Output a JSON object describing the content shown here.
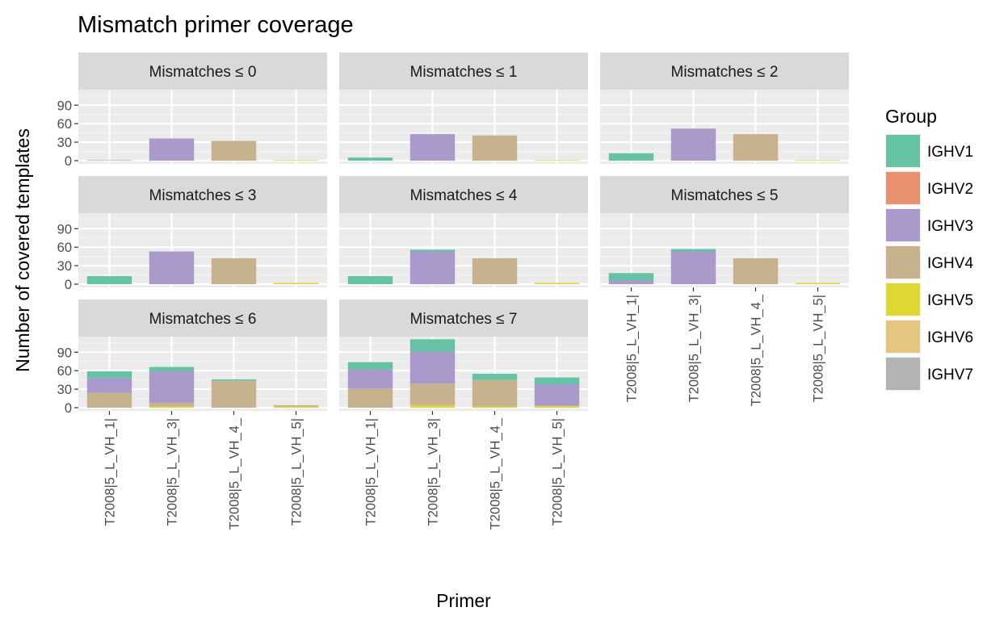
{
  "chart_data": {
    "type": "bar",
    "stacked": true,
    "faceted": true,
    "title": "Mismatch primer coverage",
    "xlabel": "Primer",
    "ylabel": "Number of covered templates",
    "ylim": [
      0,
      110
    ],
    "yticks": [
      0,
      30,
      60,
      90
    ],
    "grid": true,
    "legend": {
      "title": "Group",
      "position": "right",
      "entries": [
        "IGHV1",
        "IGHV2",
        "IGHV3",
        "IGHV4",
        "IGHV5",
        "IGHV6",
        "IGHV7"
      ]
    },
    "colors": {
      "IGHV1": "#66c2a5",
      "IGHV2": "#e8916f",
      "IGHV3": "#a99acb",
      "IGHV4": "#c6b28d",
      "IGHV5": "#dfd734",
      "IGHV6": "#e6c57f",
      "IGHV7": "#b3b3b3"
    },
    "categories": [
      "T2008|5_L_VH_1|",
      "T2008|5_L_VH_3|",
      "T2008|5_L_VH_4_",
      "T2008|5_L_VH_5|"
    ],
    "facets": [
      {
        "label": "Mismatches ≤ 0",
        "bars": [
          {
            "category": "T2008|5_L_VH_1|",
            "segments": [
              {
                "group": "IGHV7",
                "value": 1
              }
            ]
          },
          {
            "category": "T2008|5_L_VH_3|",
            "segments": [
              {
                "group": "IGHV3",
                "value": 36
              }
            ]
          },
          {
            "category": "T2008|5_L_VH_4_",
            "segments": [
              {
                "group": "IGHV4",
                "value": 32
              }
            ]
          },
          {
            "category": "T2008|5_L_VH_5|",
            "segments": [
              {
                "group": "IGHV5",
                "value": 1
              }
            ]
          }
        ]
      },
      {
        "label": "Mismatches ≤ 1",
        "bars": [
          {
            "category": "T2008|5_L_VH_1|",
            "segments": [
              {
                "group": "IGHV1",
                "value": 5
              }
            ]
          },
          {
            "category": "T2008|5_L_VH_3|",
            "segments": [
              {
                "group": "IGHV3",
                "value": 43
              }
            ]
          },
          {
            "category": "T2008|5_L_VH_4_",
            "segments": [
              {
                "group": "IGHV4",
                "value": 41
              }
            ]
          },
          {
            "category": "T2008|5_L_VH_5|",
            "segments": [
              {
                "group": "IGHV5",
                "value": 1
              }
            ]
          }
        ]
      },
      {
        "label": "Mismatches ≤ 2",
        "bars": [
          {
            "category": "T2008|5_L_VH_1|",
            "segments": [
              {
                "group": "IGHV1",
                "value": 12
              }
            ]
          },
          {
            "category": "T2008|5_L_VH_3|",
            "segments": [
              {
                "group": "IGHV3",
                "value": 52
              }
            ]
          },
          {
            "category": "T2008|5_L_VH_4_",
            "segments": [
              {
                "group": "IGHV4",
                "value": 43
              }
            ]
          },
          {
            "category": "T2008|5_L_VH_5|",
            "segments": [
              {
                "group": "IGHV5",
                "value": 1
              }
            ]
          }
        ]
      },
      {
        "label": "Mismatches ≤ 3",
        "bars": [
          {
            "category": "T2008|5_L_VH_1|",
            "segments": [
              {
                "group": "IGHV1",
                "value": 13
              }
            ]
          },
          {
            "category": "T2008|5_L_VH_3|",
            "segments": [
              {
                "group": "IGHV3",
                "value": 53
              }
            ]
          },
          {
            "category": "T2008|5_L_VH_4_",
            "segments": [
              {
                "group": "IGHV4",
                "value": 42
              }
            ]
          },
          {
            "category": "T2008|5_L_VH_5|",
            "segments": [
              {
                "group": "IGHV5",
                "value": 2
              }
            ]
          }
        ]
      },
      {
        "label": "Mismatches ≤ 4",
        "bars": [
          {
            "category": "T2008|5_L_VH_1|",
            "segments": [
              {
                "group": "IGHV1",
                "value": 13
              }
            ]
          },
          {
            "category": "T2008|5_L_VH_3|",
            "segments": [
              {
                "group": "IGHV3",
                "value": 53
              },
              {
                "group": "IGHV1",
                "value": 3
              }
            ]
          },
          {
            "category": "T2008|5_L_VH_4_",
            "segments": [
              {
                "group": "IGHV4",
                "value": 42
              }
            ]
          },
          {
            "category": "T2008|5_L_VH_5|",
            "segments": [
              {
                "group": "IGHV5",
                "value": 2
              }
            ]
          }
        ]
      },
      {
        "label": "Mismatches ≤ 5",
        "bars": [
          {
            "category": "T2008|5_L_VH_1|",
            "segments": [
              {
                "group": "IGHV3",
                "value": 6
              },
              {
                "group": "IGHV1",
                "value": 12
              }
            ]
          },
          {
            "category": "T2008|5_L_VH_3|",
            "segments": [
              {
                "group": "IGHV3",
                "value": 53
              },
              {
                "group": "IGHV1",
                "value": 4
              }
            ]
          },
          {
            "category": "T2008|5_L_VH_4_",
            "segments": [
              {
                "group": "IGHV4",
                "value": 42
              }
            ]
          },
          {
            "category": "T2008|5_L_VH_5|",
            "segments": [
              {
                "group": "IGHV5",
                "value": 2
              }
            ]
          }
        ]
      },
      {
        "label": "Mismatches ≤ 6",
        "bars": [
          {
            "category": "T2008|5_L_VH_1|",
            "segments": [
              {
                "group": "IGHV4",
                "value": 24
              },
              {
                "group": "IGHV3",
                "value": 24
              },
              {
                "group": "IGHV1",
                "value": 11
              }
            ]
          },
          {
            "category": "T2008|5_L_VH_3|",
            "segments": [
              {
                "group": "IGHV5",
                "value": 2
              },
              {
                "group": "IGHV4",
                "value": 6
              },
              {
                "group": "IGHV3",
                "value": 51
              },
              {
                "group": "IGHV1",
                "value": 7
              }
            ]
          },
          {
            "category": "T2008|5_L_VH_4_",
            "segments": [
              {
                "group": "IGHV4",
                "value": 44
              },
              {
                "group": "IGHV1",
                "value": 2
              }
            ]
          },
          {
            "category": "T2008|5_L_VH_5|",
            "segments": [
              {
                "group": "IGHV5",
                "value": 2
              },
              {
                "group": "IGHV4",
                "value": 2
              }
            ]
          }
        ]
      },
      {
        "label": "Mismatches ≤ 7",
        "bars": [
          {
            "category": "T2008|5_L_VH_1|",
            "segments": [
              {
                "group": "IGHV4",
                "value": 31
              },
              {
                "group": "IGHV3",
                "value": 31
              },
              {
                "group": "IGHV1",
                "value": 12
              }
            ]
          },
          {
            "category": "T2008|5_L_VH_3|",
            "segments": [
              {
                "group": "IGHV5",
                "value": 4
              },
              {
                "group": "IGHV4",
                "value": 35
              },
              {
                "group": "IGHV3",
                "value": 52
              },
              {
                "group": "IGHV1",
                "value": 20
              }
            ]
          },
          {
            "category": "T2008|5_L_VH_4_",
            "segments": [
              {
                "group": "IGHV5",
                "value": 2
              },
              {
                "group": "IGHV4",
                "value": 43
              },
              {
                "group": "IGHV1",
                "value": 10
              }
            ]
          },
          {
            "category": "T2008|5_L_VH_5|",
            "segments": [
              {
                "group": "IGHV5",
                "value": 3
              },
              {
                "group": "IGHV3",
                "value": 35
              },
              {
                "group": "IGHV1",
                "value": 11
              }
            ]
          }
        ]
      }
    ]
  }
}
